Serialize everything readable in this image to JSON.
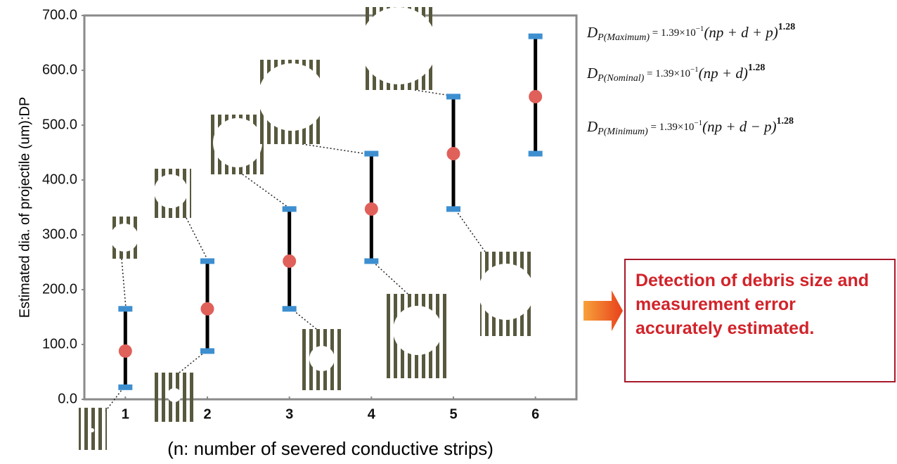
{
  "chart_data": {
    "type": "errorbar",
    "y_label": "Estimated dia. of projectile (um):DP",
    "x_label": "(n: number of severed conductive strips)",
    "x": [
      1,
      2,
      3,
      4,
      5,
      6
    ],
    "values": [
      88,
      165,
      252,
      347,
      448,
      552
    ],
    "lower": [
      22,
      88,
      165,
      252,
      347,
      448
    ],
    "upper": [
      165,
      252,
      347,
      448,
      552,
      662
    ],
    "color": "#e0605a",
    "cap_color": "#3d8fd0",
    "bar_color": "#000000",
    "xlim": [
      0.5,
      6.5
    ],
    "ylim": [
      0,
      700
    ],
    "xticks": [
      1,
      2,
      3,
      4,
      5,
      6
    ],
    "yticks": [
      {
        "value": 0,
        "label": "0.0"
      },
      {
        "value": 100,
        "label": "100.0"
      },
      {
        "value": 200,
        "label": "200.0"
      },
      {
        "value": 300,
        "label": "300.0"
      },
      {
        "value": 400,
        "label": "400.0"
      },
      {
        "value": 500,
        "label": "500.0"
      },
      {
        "value": 600,
        "label": "600.0"
      },
      {
        "value": 700,
        "label": "700.0"
      }
    ],
    "formulas": [
      {
        "symbol": "D",
        "subscript": "P(Maximum)",
        "coefficient": " = 1.39×10",
        "coefficient_exponent": "−1",
        "expression": "(np + d + p)",
        "exponent": "1.28"
      },
      {
        "symbol": "D",
        "subscript": "P(Nominal)",
        "coefficient": " = 1.39×10",
        "coefficient_exponent": "−1",
        "expression": "(np + d)",
        "exponent": "1.28"
      },
      {
        "symbol": "D",
        "subscript": "P(Minimum)",
        "coefficient": " = 1.39×10",
        "coefficient_exponent": "−1",
        "expression": "(np + d − p)",
        "exponent": "1.28"
      }
    ],
    "annotation": "Detection of debris size and measurement error accurately estimated."
  }
}
